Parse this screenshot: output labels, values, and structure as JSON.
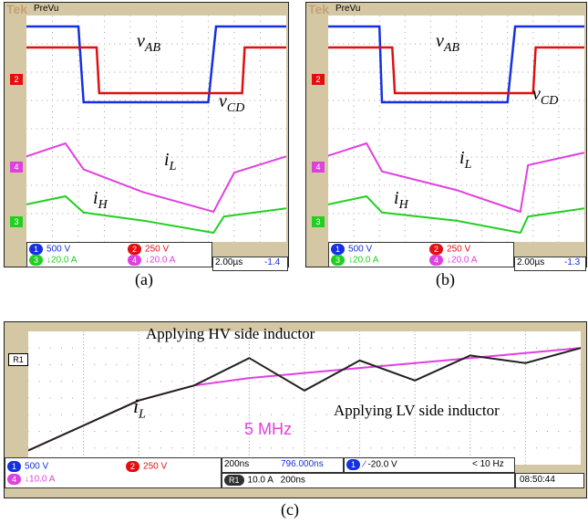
{
  "panels": [
    {
      "caption": "(a)",
      "brand": "Tek",
      "mode": "PreVu",
      "ch_markers": [
        "2",
        "4",
        "3"
      ],
      "footer": {
        "ch1": {
          "num": "1",
          "scale": "500 V"
        },
        "ch2": {
          "num": "2",
          "scale": "250 V"
        },
        "ch3": {
          "num": "3",
          "scale": "20.0 A"
        },
        "ch4": {
          "num": "4",
          "scale": "20.0 A"
        },
        "time": "2.00µs",
        "offset": "-1.4"
      },
      "labels": {
        "vab_main": "v",
        "vab_sub": "AB",
        "vcd_main": "v",
        "vcd_sub": "CD",
        "il_main": "i",
        "il_sub": "L",
        "ih_main": "i",
        "ih_sub": "H"
      }
    },
    {
      "caption": "(b)",
      "brand": "Tek",
      "mode": "PreVu",
      "ch_markers": [
        "2",
        "4",
        "3"
      ],
      "footer": {
        "ch1": {
          "num": "1",
          "scale": "500 V"
        },
        "ch2": {
          "num": "2",
          "scale": "250 V"
        },
        "ch3": {
          "num": "3",
          "scale": "20.0 A"
        },
        "ch4": {
          "num": "4",
          "scale": "20.0 A"
        },
        "time": "2.00µs",
        "offset": "-1.3"
      },
      "labels": {
        "vab_main": "v",
        "vab_sub": "AB",
        "vcd_main": "v",
        "vcd_sub": "CD",
        "il_main": "i",
        "il_sub": "L",
        "ih_main": "i",
        "ih_sub": "H"
      }
    }
  ],
  "panel_c": {
    "caption": "(c)",
    "ref_marker": "R1",
    "annotations": {
      "hv": "Applying HV side inductor",
      "lv": "Applying LV side inductor",
      "freq": "5 MHz",
      "il_main": "i",
      "il_sub": "L"
    },
    "footer": {
      "ch1": {
        "num": "1",
        "scale": "500 V"
      },
      "ch2": {
        "num": "2",
        "scale": "250 V"
      },
      "ch4": {
        "num": "4",
        "scale": "10.0 A"
      },
      "time": "200ns",
      "position": "796.000ns",
      "trig_ch": "1",
      "trig": "-20.0 V",
      "freq_readout": "< 10 Hz",
      "ref_label": "R1",
      "ref_scale": "10.0 A",
      "ref_time": "200ns",
      "clock": "08:50:44"
    }
  },
  "colors": {
    "ch1": "#1530e0",
    "ch2": "#e01010",
    "ch3": "#20d020",
    "ch4": "#e040e0",
    "ref": "#202020",
    "bezel": "#d4c8a4",
    "tek": "#c4a070"
  },
  "chart_data": [
    {
      "type": "line",
      "panel": "(a)",
      "series": [
        {
          "name": "vAB",
          "x": [
            0,
            2.0,
            2.2,
            7.0,
            7.3,
            10
          ],
          "y": [
            1.0,
            1.0,
            -1.0,
            -1.0,
            1.0,
            1.0
          ]
        },
        {
          "name": "vCD",
          "x": [
            0,
            2.7,
            2.8,
            8.3,
            8.4,
            10
          ],
          "y": [
            1.0,
            1.0,
            -1.0,
            -1.0,
            1.0,
            1.0
          ]
        },
        {
          "name": "iL",
          "x": [
            0,
            1.5,
            2.2,
            4.5,
            7.2,
            8.0,
            10
          ],
          "y": [
            0.1,
            0.5,
            -0.3,
            -1.0,
            -1.6,
            -0.4,
            0.1
          ]
        },
        {
          "name": "iH",
          "x": [
            0,
            1.5,
            2.2,
            4.5,
            7.2,
            7.6,
            10
          ],
          "y": [
            0.3,
            0.5,
            0.1,
            -0.1,
            -0.4,
            0.0,
            0.2
          ]
        }
      ]
    },
    {
      "type": "line",
      "panel": "(b)",
      "series": [
        {
          "name": "vAB",
          "x": [
            0,
            2.0,
            2.1,
            7.0,
            7.3,
            10
          ],
          "y": [
            1.0,
            1.0,
            -1.0,
            -1.0,
            1.0,
            1.0
          ]
        },
        {
          "name": "vCD",
          "x": [
            0,
            2.5,
            2.6,
            8.0,
            8.1,
            10
          ],
          "y": [
            1.0,
            1.0,
            -1.0,
            -1.0,
            1.0,
            1.0
          ]
        },
        {
          "name": "iL",
          "x": [
            0,
            1.5,
            2.1,
            5.0,
            7.5,
            7.8,
            10
          ],
          "y": [
            0.1,
            0.5,
            -0.4,
            -1.0,
            -1.7,
            -0.2,
            0.2
          ]
        },
        {
          "name": "iH",
          "x": [
            0,
            1.5,
            2.1,
            5.0,
            7.5,
            7.8,
            10
          ],
          "y": [
            0.3,
            0.5,
            0.1,
            -0.1,
            -0.4,
            0.0,
            0.2
          ]
        }
      ]
    },
    {
      "type": "line",
      "panel": "(c)",
      "series": [
        {
          "name": "LV side",
          "x": [
            0,
            1,
            2,
            3,
            4,
            5,
            6,
            7,
            8,
            9,
            10
          ],
          "y": [
            -2.0,
            -1.0,
            0.0,
            0.6,
            0.9,
            1.1,
            1.3,
            1.5,
            1.7,
            1.9,
            2.1
          ]
        },
        {
          "name": "HV side",
          "x": [
            0,
            1,
            2,
            3,
            4,
            5,
            6,
            7,
            8,
            9,
            10
          ],
          "y": [
            -2.0,
            -1.0,
            0.0,
            0.6,
            1.7,
            0.4,
            1.6,
            0.8,
            1.8,
            1.5,
            2.1
          ]
        }
      ]
    }
  ]
}
